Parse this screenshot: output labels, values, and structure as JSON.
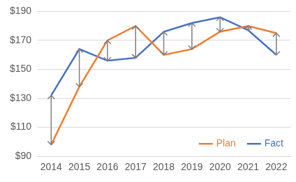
{
  "chart_data": {
    "type": "line",
    "categories": [
      "2014",
      "2015",
      "2016",
      "2017",
      "2018",
      "2019",
      "2020",
      "2021",
      "2022"
    ],
    "series": [
      {
        "name": "Plan",
        "color": "#ed7d31",
        "values": [
          98,
          138,
          170,
          180,
          160,
          164,
          176,
          180,
          175
        ]
      },
      {
        "name": "Fact",
        "color": "#4472c4",
        "values": [
          132,
          164,
          156,
          158,
          176,
          182,
          186,
          177,
          160
        ]
      }
    ],
    "ylim": [
      90,
      190
    ],
    "yticks": [
      {
        "value": 90,
        "label": "$90"
      },
      {
        "value": 110,
        "label": "$110"
      },
      {
        "value": 130,
        "label": "$130"
      },
      {
        "value": 150,
        "label": "$150"
      },
      {
        "value": 170,
        "label": "$170"
      },
      {
        "value": 190,
        "label": "$190"
      }
    ],
    "grid": true,
    "legend": "lower right"
  }
}
